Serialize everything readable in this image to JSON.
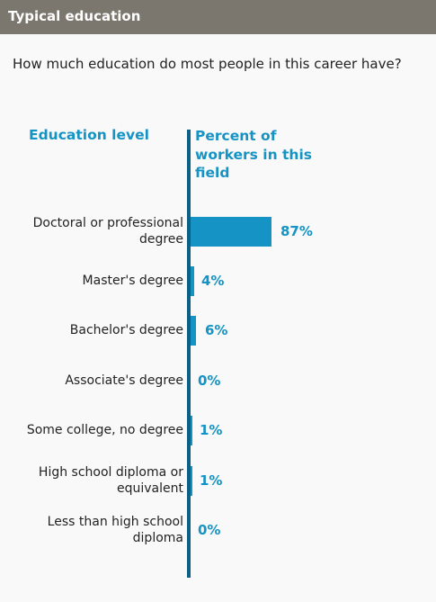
{
  "header": {
    "title": "Typical education"
  },
  "question": "How much education do most people in this career have?",
  "colors": {
    "header_bg": "#7b776f",
    "accent": "#1593c4",
    "axis": "#0c6086"
  },
  "chart_data": {
    "type": "bar",
    "orientation": "horizontal",
    "category_header": "Education level",
    "value_header": "Percent of workers in this field",
    "categories": [
      "Doctoral or professional degree",
      "Master's degree",
      "Bachelor's degree",
      "Associate's degree",
      "Some college, no degree",
      "High school diploma or equivalent",
      "Less than high school diploma"
    ],
    "values": [
      87,
      4,
      6,
      0,
      1,
      1,
      0
    ],
    "value_labels": [
      "87%",
      "4%",
      "6%",
      "0%",
      "1%",
      "1%",
      "0%"
    ],
    "unit": "%",
    "xlim": [
      0,
      100
    ]
  }
}
